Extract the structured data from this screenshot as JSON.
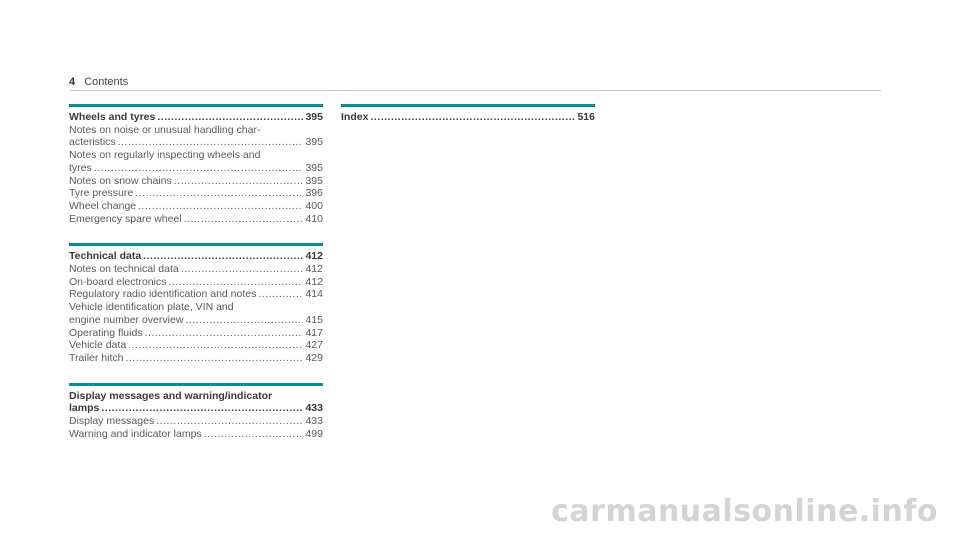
{
  "header": {
    "page_number": "4",
    "title": "Contents"
  },
  "left_sections": [
    {
      "heading": {
        "text": "Wheels and tyres",
        "page": "395"
      },
      "items": [
        {
          "lines": [
            "Notes on noise or unusual handling char-"
          ],
          "last": "acteristics",
          "page": "395"
        },
        {
          "lines": [
            "Notes on regularly inspecting wheels and"
          ],
          "last": "tyres",
          "page": "395"
        },
        {
          "lines": [],
          "last": "Notes on snow chains",
          "page": "395"
        },
        {
          "lines": [],
          "last": "Tyre pressure",
          "page": "396"
        },
        {
          "lines": [],
          "last": "Wheel change",
          "page": "400"
        },
        {
          "lines": [],
          "last": "Emergency spare wheel",
          "page": "410"
        }
      ]
    },
    {
      "heading": {
        "text": "Technical data",
        "page": "412"
      },
      "items": [
        {
          "lines": [],
          "last": "Notes on technical data",
          "page": "412"
        },
        {
          "lines": [],
          "last": "On-board electronics",
          "page": "412"
        },
        {
          "lines": [],
          "last": "Regulatory radio identification and notes",
          "page": "414"
        },
        {
          "lines": [
            "Vehicle identification plate, VIN and"
          ],
          "last": "engine number overview",
          "page": "415"
        },
        {
          "lines": [],
          "last": "Operating fluids",
          "page": "417"
        },
        {
          "lines": [],
          "last": "Vehicle data",
          "page": "427"
        },
        {
          "lines": [],
          "last": "Trailer hitch",
          "page": "429"
        }
      ]
    },
    {
      "heading": {
        "lines": [
          "Display messages and warning/indicator"
        ],
        "text": "lamps",
        "page": "433"
      },
      "items": [
        {
          "lines": [],
          "last": "Display messages",
          "page": "433"
        },
        {
          "lines": [],
          "last": "Warning and indicator lamps",
          "page": "499"
        }
      ]
    }
  ],
  "right_sections": [
    {
      "heading": {
        "text": "Index",
        "page": "516"
      }
    }
  ],
  "watermark": "carmanualsonline.info"
}
